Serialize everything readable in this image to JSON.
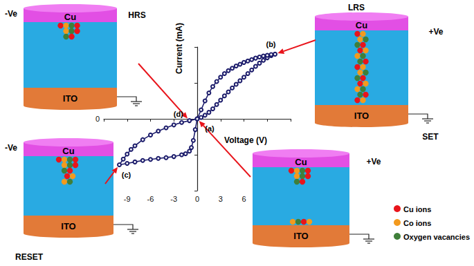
{
  "chart_data": {
    "type": "line",
    "x_label": "Voltage (V)",
    "y_label": "Current (mA)",
    "x": [
      0,
      0.5,
      1,
      1.5,
      2,
      2.5,
      3,
      3.5,
      4,
      4.5,
      5,
      5.5,
      6,
      6.5,
      7,
      7.5,
      8,
      8.5,
      9,
      9.5,
      10,
      9.5,
      9,
      8.5,
      8,
      7.5,
      7,
      6.5,
      6,
      5.5,
      5,
      4.5,
      4,
      3.5,
      3,
      2.5,
      2,
      1.5,
      1,
      0.5,
      0,
      -0.25,
      -0.5,
      -0.75,
      -1,
      -1.5,
      -2,
      -3,
      -4,
      -5,
      -6,
      -7,
      -8,
      -9,
      -10,
      -9.5,
      -9,
      -8.5,
      -8,
      -7,
      -6,
      -5,
      -4,
      -3,
      -2,
      -1,
      0
    ],
    "values": [
      0,
      0.04,
      0.1,
      0.18,
      0.28,
      0.4,
      0.52,
      0.64,
      0.75,
      0.86,
      0.96,
      1.06,
      1.16,
      1.26,
      1.36,
      1.46,
      1.55,
      1.63,
      1.7,
      1.76,
      1.8,
      1.79,
      1.77,
      1.75,
      1.72,
      1.69,
      1.65,
      1.61,
      1.57,
      1.52,
      1.47,
      1.41,
      1.34,
      1.26,
      1.16,
      1.04,
      0.9,
      0.72,
      0.5,
      0.25,
      0,
      -0.3,
      -0.6,
      -0.8,
      -0.9,
      -0.97,
      -1.0,
      -1.05,
      -1.08,
      -1.1,
      -1.13,
      -1.16,
      -1.2,
      -1.24,
      -1.28,
      -1.12,
      -0.98,
      -0.85,
      -0.75,
      -0.58,
      -0.45,
      -0.34,
      -0.25,
      -0.17,
      -0.1,
      -0.05,
      0
    ],
    "color": "#1c1c6b",
    "marker": "circle",
    "xlim": [
      -12,
      12
    ],
    "xticks": [
      -12,
      -9,
      -6,
      -3,
      0,
      3,
      6,
      9,
      12
    ],
    "ylim": [
      -2,
      2
    ],
    "yticks": [
      -2,
      -1,
      0,
      1,
      2
    ],
    "grid": false,
    "annotations": [
      {
        "text": "(a)",
        "x": 0,
        "y": 0
      },
      {
        "text": "(b)",
        "x": 10,
        "y": 1.8
      },
      {
        "text": "(c)",
        "x": -10,
        "y": -1.28
      },
      {
        "text": "(d)",
        "x": -1,
        "y": -0.05
      }
    ]
  },
  "insets": [
    {
      "state": "HRS",
      "bias": "-Ve",
      "top_electrode": "Cu",
      "bottom_electrode": "ITO",
      "points_to": "(d)"
    },
    {
      "state": "LRS",
      "bias": "+Ve",
      "process": "SET",
      "top_electrode": "Cu",
      "bottom_electrode": "ITO",
      "points_to": "(b)"
    },
    {
      "bias": "-Ve",
      "process": "RESET",
      "top_electrode": "Cu",
      "bottom_electrode": "ITO",
      "points_to": "(c)"
    },
    {
      "bias": "+Ve",
      "top_electrode": "Cu",
      "bottom_electrode": "ITO",
      "points_to": "(a)"
    }
  ],
  "ion_key": [
    {
      "name": "Cu ions",
      "color": "#e8141b"
    },
    {
      "name": "Co ions",
      "color": "#f39a1e"
    },
    {
      "name": "Oxygen vacancies",
      "color": "#3f7f3a"
    }
  ]
}
